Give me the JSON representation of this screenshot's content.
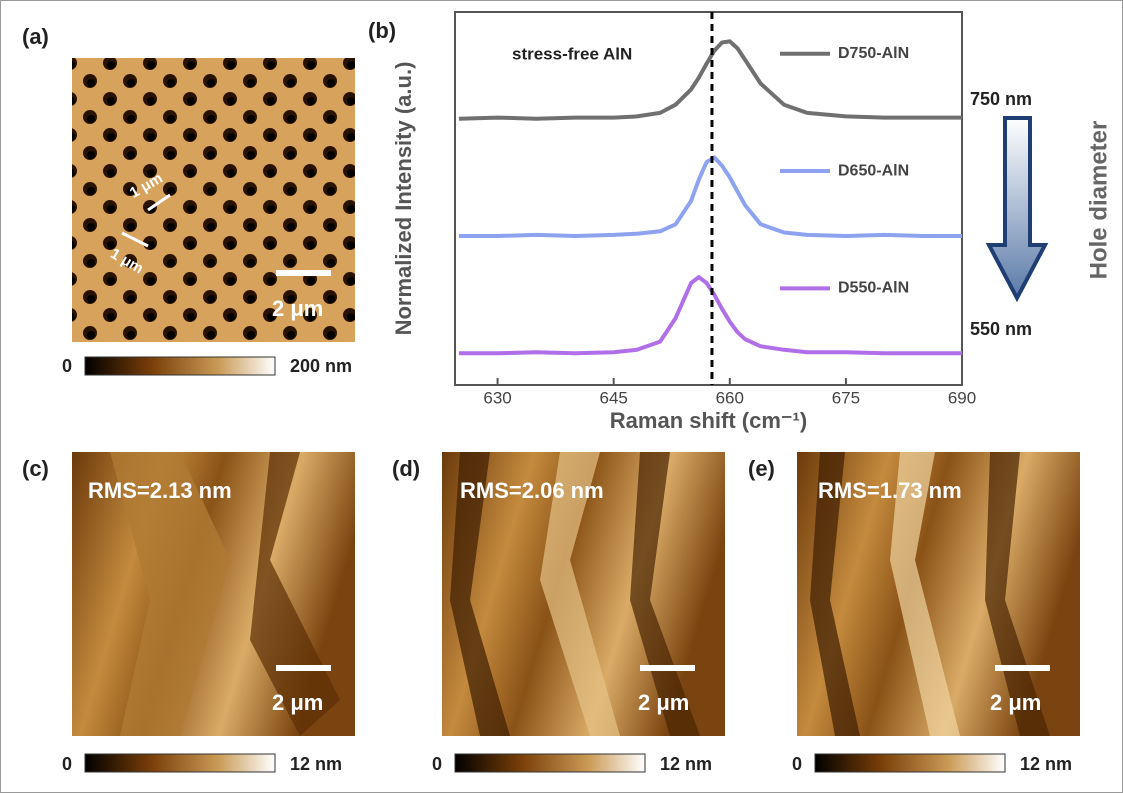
{
  "panels": {
    "a": {
      "label": "(a)",
      "arrows": [
        "1 μm",
        "1 μm"
      ],
      "scale_bar": "2 μm",
      "colorbar": [
        "0",
        "200 nm"
      ]
    },
    "b": {
      "label": "(b)",
      "side_top": "750 nm",
      "side_bottom": "550 nm",
      "side_title": "Hole diameter"
    },
    "c": {
      "label": "(c)",
      "rms": "RMS=2.13  nm",
      "scale_bar": "2 μm",
      "colorbar": [
        "0",
        "12 nm"
      ]
    },
    "d": {
      "label": "(d)",
      "rms": "RMS=2.06  nm",
      "scale_bar": "2 μm",
      "colorbar": [
        "0",
        "12 nm"
      ]
    },
    "e": {
      "label": "(e)",
      "rms": "RMS=1.73  nm",
      "scale_bar": "2 μm",
      "colorbar": [
        "0",
        "12 nm"
      ]
    }
  },
  "chart_data": {
    "type": "line",
    "x_label": "Raman shift (cm⁻¹)",
    "y_label": "Normalized Intensity (a.u.)",
    "annotation": "stress-free AlN",
    "reference_x": 657.7,
    "xlim": [
      624.5,
      690
    ],
    "xticks": [
      630,
      645,
      660,
      675,
      690
    ],
    "ylim": [
      -0.27,
      2.91
    ],
    "x": [
      625,
      630,
      635,
      640,
      645,
      648,
      651,
      653,
      655,
      656,
      657,
      658,
      659,
      660,
      661,
      662,
      664,
      667,
      670,
      675,
      680,
      685,
      690
    ],
    "series": [
      {
        "name": "D750-AlN",
        "color": "#707070",
        "values": [
          2.0,
          2.01,
          2.0,
          2.01,
          2.01,
          2.02,
          2.05,
          2.12,
          2.25,
          2.35,
          2.47,
          2.58,
          2.65,
          2.66,
          2.6,
          2.5,
          2.3,
          2.12,
          2.05,
          2.02,
          2.01,
          2.01,
          2.01
        ]
      },
      {
        "name": "D650-AlN",
        "color": "#8ea3f0",
        "values": [
          1.0,
          1.0,
          1.01,
          1.0,
          1.01,
          1.02,
          1.04,
          1.1,
          1.3,
          1.48,
          1.63,
          1.67,
          1.6,
          1.5,
          1.38,
          1.26,
          1.1,
          1.03,
          1.01,
          1.0,
          1.01,
          1.0,
          1.0
        ]
      },
      {
        "name": "D550-AlN",
        "color": "#b06ee8",
        "values": [
          0.0,
          0.0,
          0.01,
          0.0,
          0.01,
          0.03,
          0.1,
          0.3,
          0.6,
          0.65,
          0.6,
          0.5,
          0.38,
          0.27,
          0.18,
          0.12,
          0.06,
          0.03,
          0.01,
          0.01,
          0.0,
          0.0,
          0.0
        ]
      }
    ]
  }
}
